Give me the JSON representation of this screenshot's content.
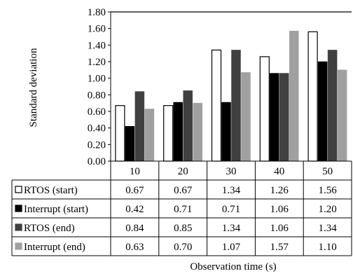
{
  "chart_data": {
    "type": "bar",
    "ylabel": "Standard deviation",
    "xlabel": "Observation time (s)",
    "ylim": [
      0,
      1.8
    ],
    "yticks": [
      "0.00",
      "0.20",
      "0.40",
      "0.60",
      "0.80",
      "1.00",
      "1.20",
      "1.40",
      "1.60",
      "1.80"
    ],
    "categories": [
      "10",
      "20",
      "30",
      "40",
      "50"
    ],
    "series": [
      {
        "name": "RTOS (start)",
        "values": [
          "0.67",
          "0.67",
          "1.34",
          "1.26",
          "1.56"
        ],
        "fill": "#ffffff",
        "stroke": "#000000"
      },
      {
        "name": "Interrupt (start)",
        "values": [
          "0.42",
          "0.71",
          "0.71",
          "1.06",
          "1.20"
        ],
        "fill": "#000000",
        "stroke": "#000000"
      },
      {
        "name": "RTOS (end)",
        "values": [
          "0.84",
          "0.85",
          "1.34",
          "1.06",
          "1.34"
        ],
        "fill": "#404040",
        "stroke": "#404040"
      },
      {
        "name": "Interrupt (end)",
        "values": [
          "0.63",
          "0.70",
          "1.07",
          "1.57",
          "1.10"
        ],
        "fill": "#a0a0a0",
        "stroke": "#a0a0a0"
      }
    ],
    "legend": "data-table-rows",
    "grid": false
  }
}
